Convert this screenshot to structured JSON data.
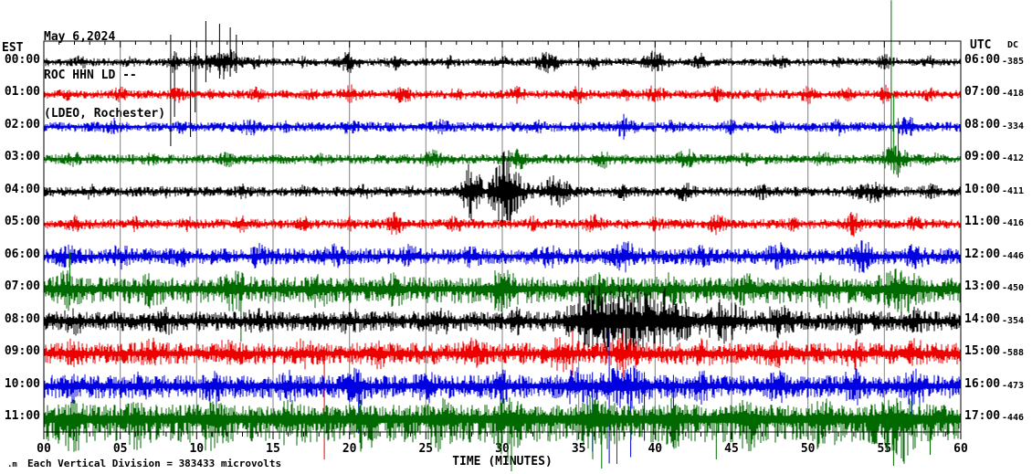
{
  "header": {
    "date": "May 6,2024",
    "station": "ROC HHN LD --",
    "location": "(LDEO, Rochester)"
  },
  "axes": {
    "left_tz": "EST",
    "right_tz": "UTC",
    "dc_header": "DC",
    "xlabel": "TIME (MINUTES)",
    "x_ticks": [
      "00",
      "05",
      "10",
      "15",
      "20",
      "25",
      "30",
      "35",
      "40",
      "45",
      "50",
      "55",
      "60"
    ]
  },
  "footer": {
    "prefix": ".m",
    "text": "Each Vertical Division = 383433 microvolts"
  },
  "colors": {
    "background": "#ffffff",
    "text": "#000000",
    "grid": "#808080",
    "border": "#000000",
    "traces": {
      "black": "#000000",
      "red": "#ee0000",
      "blue": "#0000e0",
      "green": "#006a00"
    }
  },
  "chart_data": {
    "type": "line",
    "subtype": "seismogram_helicorder",
    "title": "ROC HHN LD -- (LDEO, Rochester) May 6,2024",
    "xlabel": "TIME (MINUTES)",
    "x_range_minutes": [
      0,
      60
    ],
    "x_tick_step_minutes": 5,
    "row_duration": "1 hour per trace row, colors cycle black/red/blue/green",
    "rows": [
      {
        "est": "00:00",
        "utc": "06:00",
        "dc": "-385",
        "color": "black",
        "amp": 4.5,
        "bursts": [
          [
            2.5,
            0.4,
            4
          ],
          [
            5.5,
            0.3,
            3
          ],
          [
            8.5,
            0.35,
            8
          ],
          [
            9.8,
            0.3,
            7
          ],
          [
            11.7,
            1.0,
            15
          ],
          [
            14,
            0.5,
            4
          ],
          [
            17,
            0.3,
            3
          ],
          [
            20,
            0.6,
            8
          ],
          [
            23,
            0.4,
            5
          ],
          [
            26.5,
            0.3,
            4
          ],
          [
            30,
            0.4,
            4
          ],
          [
            33,
            0.8,
            8
          ],
          [
            36,
            0.4,
            5
          ],
          [
            40,
            0.7,
            9
          ],
          [
            43,
            0.4,
            6
          ],
          [
            48,
            0.5,
            5
          ],
          [
            52,
            0.3,
            4
          ],
          [
            55,
            0.5,
            5
          ],
          [
            58,
            0.3,
            4
          ]
        ],
        "spikes": [
          [
            8.3,
            30,
            92
          ],
          [
            8.55,
            12,
            60
          ],
          [
            9.6,
            24,
            82
          ],
          [
            9.9,
            10,
            55
          ],
          [
            10.6,
            45,
            22
          ],
          [
            11.5,
            42,
            18
          ],
          [
            12.2,
            38,
            15
          ],
          [
            12.6,
            30,
            12
          ]
        ]
      },
      {
        "est": "01:00",
        "utc": "07:00",
        "dc": "-418",
        "color": "red",
        "amp": 5,
        "bursts": [
          [
            1.5,
            0.3,
            3
          ],
          [
            5,
            0.4,
            5
          ],
          [
            8.7,
            0.4,
            7
          ],
          [
            11,
            0.3,
            4
          ],
          [
            14,
            0.4,
            5
          ],
          [
            17.5,
            0.3,
            4
          ],
          [
            20,
            0.5,
            7
          ],
          [
            23.5,
            0.5,
            6
          ],
          [
            27,
            0.3,
            4
          ],
          [
            31,
            0.4,
            5
          ],
          [
            35,
            0.4,
            6
          ],
          [
            38,
            0.3,
            4
          ],
          [
            40,
            0.5,
            7
          ],
          [
            44,
            0.4,
            5
          ],
          [
            47,
            0.3,
            4
          ],
          [
            50,
            0.4,
            7
          ],
          [
            52.5,
            0.3,
            5
          ],
          [
            55,
            0.4,
            6
          ],
          [
            58,
            0.3,
            4
          ]
        ],
        "spikes": []
      },
      {
        "est": "02:00",
        "utc": "08:00",
        "dc": "-334",
        "color": "blue",
        "amp": 5.5,
        "bursts": [
          [
            4.5,
            0.5,
            5
          ],
          [
            9,
            0.3,
            3
          ],
          [
            13.5,
            0.5,
            6
          ],
          [
            16,
            0.3,
            3
          ],
          [
            20,
            0.4,
            4
          ],
          [
            26,
            0.4,
            4
          ],
          [
            32,
            0.5,
            5
          ],
          [
            38,
            0.5,
            9
          ],
          [
            41,
            0.3,
            4
          ],
          [
            45,
            0.4,
            4
          ],
          [
            48,
            0.3,
            3
          ],
          [
            52,
            0.4,
            5
          ],
          [
            56.5,
            0.5,
            7
          ]
        ],
        "spikes": []
      },
      {
        "est": "03:00",
        "utc": "09:00",
        "dc": "-412",
        "color": "green",
        "amp": 5.5,
        "bursts": [
          [
            2,
            0.4,
            4
          ],
          [
            7,
            0.3,
            3
          ],
          [
            12,
            0.4,
            4
          ],
          [
            18,
            0.3,
            3
          ],
          [
            25.5,
            0.6,
            6
          ],
          [
            31,
            0.5,
            8
          ],
          [
            36.5,
            0.5,
            7
          ],
          [
            42,
            0.5,
            9
          ],
          [
            46,
            0.3,
            4
          ],
          [
            51,
            0.4,
            6
          ],
          [
            55.8,
            0.8,
            12
          ],
          [
            58,
            0.4,
            5
          ]
        ],
        "spikes": [
          [
            55.45,
            174,
            12
          ],
          [
            55.62,
            70,
            16
          ],
          [
            55.9,
            45,
            20
          ]
        ]
      },
      {
        "est": "04:00",
        "utc": "10:00",
        "dc": "-411",
        "color": "black",
        "amp": 5.5,
        "bursts": [
          [
            3,
            0.4,
            4
          ],
          [
            8,
            0.3,
            3
          ],
          [
            13,
            0.4,
            4
          ],
          [
            17,
            0.3,
            3
          ],
          [
            21,
            0.4,
            4
          ],
          [
            24,
            0.3,
            3
          ],
          [
            28,
            0.6,
            28
          ],
          [
            30.3,
            0.9,
            42
          ],
          [
            33.5,
            0.9,
            14
          ],
          [
            38,
            0.4,
            5
          ],
          [
            42,
            0.5,
            7
          ],
          [
            47,
            0.4,
            5
          ],
          [
            54,
            1.0,
            9
          ],
          [
            58,
            0.4,
            5
          ]
        ],
        "spikes": []
      },
      {
        "est": "05:00",
        "utc": "11:00",
        "dc": "-416",
        "color": "red",
        "amp": 5.5,
        "bursts": [
          [
            2,
            0.4,
            5
          ],
          [
            6,
            0.3,
            4
          ],
          [
            9.5,
            0.3,
            4
          ],
          [
            13,
            0.4,
            6
          ],
          [
            17,
            0.4,
            6
          ],
          [
            20,
            0.3,
            4
          ],
          [
            23,
            0.4,
            9
          ],
          [
            27,
            0.4,
            6
          ],
          [
            32,
            0.3,
            4
          ],
          [
            36,
            0.5,
            6
          ],
          [
            40,
            0.3,
            4
          ],
          [
            44,
            0.5,
            7
          ],
          [
            49,
            0.3,
            4
          ],
          [
            53,
            0.5,
            9
          ],
          [
            57,
            0.4,
            5
          ]
        ],
        "spikes": []
      },
      {
        "est": "06:00",
        "utc": "12:00",
        "dc": "-446",
        "color": "blue",
        "amp": 9,
        "bursts": [
          [
            1.5,
            0.5,
            5
          ],
          [
            5,
            0.5,
            6
          ],
          [
            9,
            0.4,
            5
          ],
          [
            14,
            0.5,
            6
          ],
          [
            19,
            0.5,
            6
          ],
          [
            24,
            0.5,
            6
          ],
          [
            28,
            0.4,
            5
          ],
          [
            33,
            0.5,
            6
          ],
          [
            38,
            0.8,
            10
          ],
          [
            43,
            0.5,
            6
          ],
          [
            48,
            0.6,
            8
          ],
          [
            53.5,
            0.8,
            10
          ],
          [
            57,
            0.5,
            7
          ]
        ],
        "spikes": []
      },
      {
        "est": "07:00",
        "utc": "13:00",
        "dc": "-450",
        "color": "green",
        "amp": 13,
        "down_bias": 1.25,
        "bursts": [
          [
            1.5,
            0.6,
            8
          ],
          [
            7,
            0.5,
            6
          ],
          [
            12.5,
            0.6,
            10
          ],
          [
            18,
            0.5,
            6
          ],
          [
            23,
            0.5,
            6
          ],
          [
            30,
            1.0,
            10
          ],
          [
            36,
            0.5,
            8
          ],
          [
            41,
            0.5,
            6
          ],
          [
            46,
            0.5,
            6
          ],
          [
            51,
            0.5,
            6
          ],
          [
            56,
            1.0,
            12
          ]
        ],
        "spikes": [
          [
            1.7,
            40,
            18
          ],
          [
            12.9,
            12,
            58
          ],
          [
            36.3,
            10,
            48
          ]
        ]
      },
      {
        "est": "08:00",
        "utc": "14:00",
        "dc": "-354",
        "color": "black",
        "amp": 11,
        "bursts": [
          [
            2,
            0.5,
            5
          ],
          [
            8,
            0.5,
            5
          ],
          [
            14,
            0.5,
            6
          ],
          [
            20,
            0.5,
            6
          ],
          [
            26,
            0.5,
            6
          ],
          [
            31,
            0.5,
            8
          ],
          [
            35.5,
            1.0,
            18
          ],
          [
            37.8,
            2.2,
            30
          ],
          [
            41,
            1.2,
            22
          ],
          [
            44.5,
            1.2,
            14
          ],
          [
            48,
            0.8,
            9
          ],
          [
            53,
            0.5,
            6
          ],
          [
            57,
            0.5,
            6
          ]
        ],
        "spikes": []
      },
      {
        "est": "09:00",
        "utc": "15:00",
        "dc": "-588",
        "color": "red",
        "amp": 12,
        "bursts": [
          [
            2,
            0.5,
            6
          ],
          [
            7,
            0.5,
            6
          ],
          [
            12,
            0.5,
            6
          ],
          [
            17,
            0.5,
            6
          ],
          [
            22,
            0.5,
            6
          ],
          [
            28,
            0.5,
            7
          ],
          [
            34,
            0.8,
            9
          ],
          [
            38,
            0.8,
            9
          ],
          [
            43,
            0.5,
            7
          ],
          [
            48,
            0.5,
            7
          ],
          [
            53,
            0.5,
            7
          ],
          [
            57,
            0.5,
            7
          ]
        ],
        "spikes": [
          [
            18.35,
            8,
            116
          ],
          [
            34.6,
            26,
            24
          ],
          [
            37.9,
            24,
            26
          ]
        ]
      },
      {
        "est": "10:00",
        "utc": "16:00",
        "dc": "-473",
        "color": "blue",
        "amp": 12,
        "down_bias": 1.15,
        "bursts": [
          [
            2,
            0.5,
            6
          ],
          [
            6.5,
            0.5,
            6
          ],
          [
            11,
            0.5,
            6
          ],
          [
            16,
            0.5,
            6
          ],
          [
            20.5,
            0.6,
            9
          ],
          [
            25,
            0.5,
            6
          ],
          [
            30,
            0.5,
            7
          ],
          [
            35,
            0.8,
            10
          ],
          [
            38,
            1.2,
            14
          ],
          [
            43,
            0.5,
            7
          ],
          [
            48,
            0.5,
            7
          ],
          [
            53,
            0.6,
            8
          ],
          [
            57,
            0.6,
            9
          ]
        ],
        "spikes": [
          [
            20.6,
            12,
            52
          ],
          [
            35.9,
            15,
            72
          ],
          [
            37.0,
            60,
            85
          ],
          [
            38.4,
            20,
            78
          ],
          [
            39.3,
            15,
            60
          ],
          [
            41.2,
            12,
            42
          ],
          [
            56.8,
            12,
            45
          ]
        ]
      },
      {
        "est": "11:00",
        "utc": "17:00",
        "dc": "-446",
        "color": "green",
        "amp": 15,
        "down_bias": 1.8,
        "bursts": [
          [
            2,
            0.6,
            8
          ],
          [
            6,
            0.5,
            6
          ],
          [
            11,
            0.6,
            8
          ],
          [
            16,
            0.5,
            7
          ],
          [
            21,
            0.5,
            7
          ],
          [
            26,
            0.6,
            8
          ],
          [
            30.5,
            0.8,
            12
          ],
          [
            36,
            1.0,
            12
          ],
          [
            41,
            0.6,
            8
          ],
          [
            46,
            0.6,
            8
          ],
          [
            51,
            0.6,
            8
          ],
          [
            56,
            1.0,
            14
          ]
        ],
        "spikes": [
          [
            30.6,
            18,
            58
          ],
          [
            36.5,
            15,
            55
          ],
          [
            37.5,
            12,
            50
          ],
          [
            44,
            10,
            45
          ],
          [
            55.6,
            15,
            52
          ],
          [
            58,
            10,
            40
          ]
        ]
      }
    ]
  }
}
